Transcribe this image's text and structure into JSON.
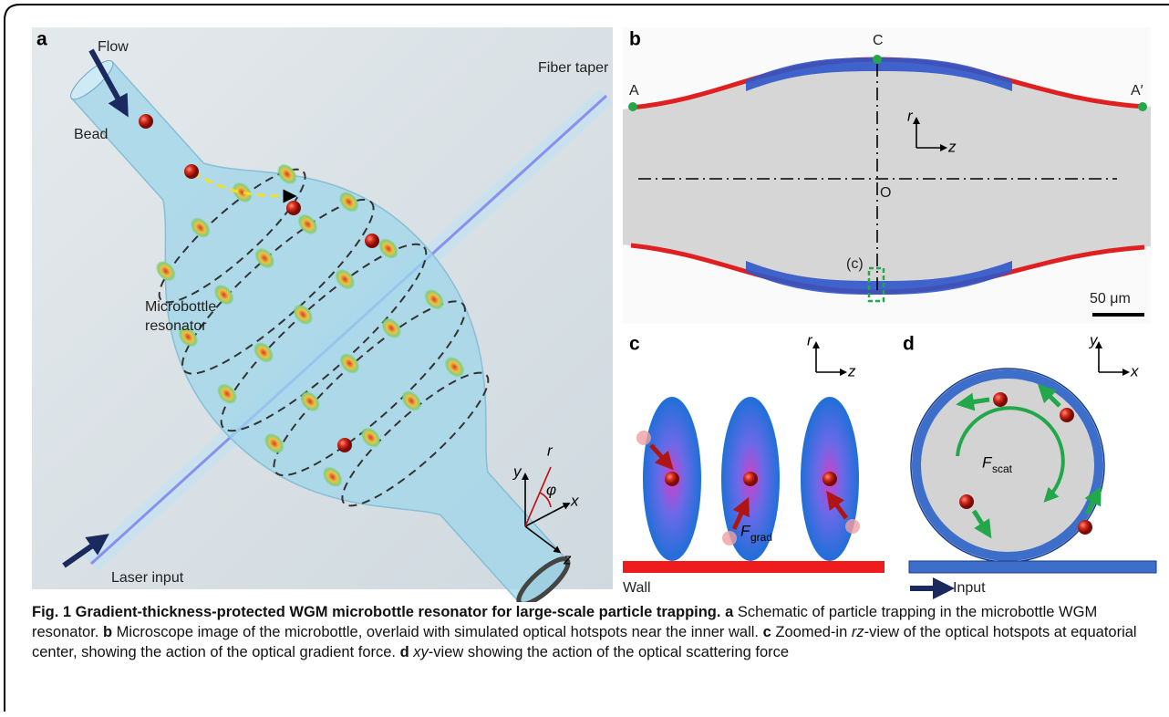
{
  "figure": {
    "panels": [
      {
        "label": "a",
        "annotations": [
          "Flow",
          "Bead",
          "Fiber taper",
          "Microbottle",
          "resonator",
          "Laser input"
        ],
        "axes": [
          "y",
          "r",
          "φ",
          "x",
          "z"
        ]
      },
      {
        "label": "b",
        "points": [
          "C",
          "A",
          "A′",
          "O"
        ],
        "axes": [
          "r",
          "z"
        ],
        "inset_marker": "(c)",
        "scale_bar": "50 μm"
      },
      {
        "label": "c",
        "axes": [
          "r",
          "z"
        ],
        "force": {
          "symbol": "F",
          "subscript": "grad"
        },
        "wall": "Wall"
      },
      {
        "label": "d",
        "axes": [
          "y",
          "x"
        ],
        "force": {
          "symbol": "F",
          "subscript": "scat"
        },
        "waveguide": "Input"
      }
    ],
    "caption": {
      "title": "Fig. 1 Gradient-thickness-protected WGM microbottle resonator for large-scale particle trapping.",
      "parts": [
        {
          "label": "a",
          "segments": [
            {
              "text": "Schematic of particle trapping in the microbottle WGM resonator."
            }
          ]
        },
        {
          "label": "b",
          "segments": [
            {
              "text": "Microscope image of the microbottle, overlaid with simulated optical hotspots near the inner wall."
            }
          ]
        },
        {
          "label": "c",
          "segments": [
            {
              "text": "Zoomed-in "
            },
            {
              "text": "rz",
              "em": true
            },
            {
              "text": "-view of the optical hotspots at equatorial center, showing the action of the optical gradient force."
            }
          ]
        },
        {
          "label": "d",
          "segments": [
            {
              "text": "xy",
              "em": true
            },
            {
              "text": "-view showing the action of the optical scattering force"
            }
          ]
        }
      ]
    }
  }
}
